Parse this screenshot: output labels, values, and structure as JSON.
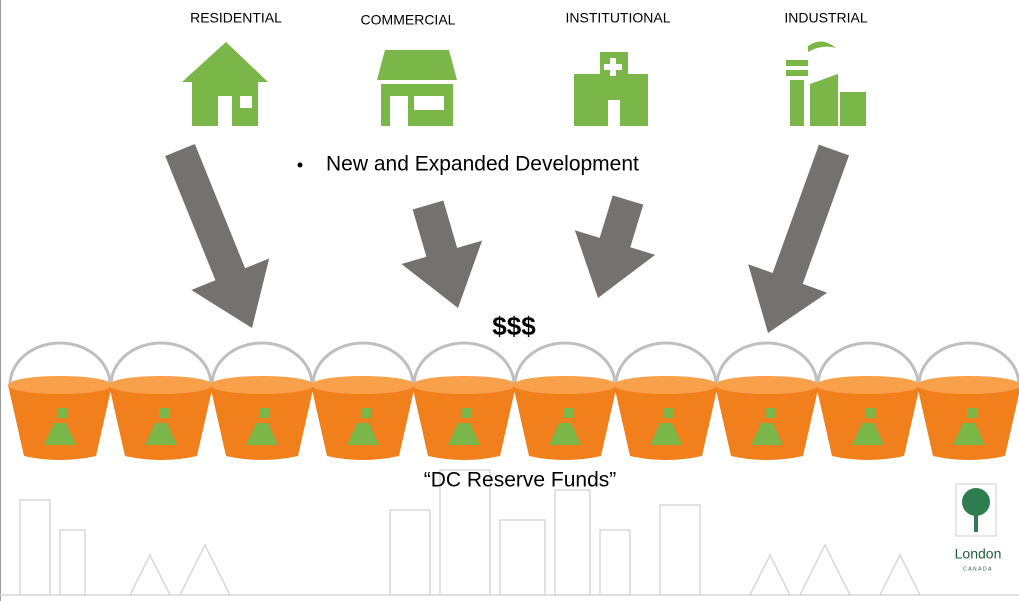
{
  "sectors": [
    {
      "label": "RESIDENTIAL"
    },
    {
      "label": "COMMERCIAL"
    },
    {
      "label": "INSTITUTIONAL"
    },
    {
      "label": "INDUSTRIAL"
    }
  ],
  "bullet": "New and Expanded Development",
  "money": "$$$",
  "funds_label": "“DC Reserve Funds”",
  "logo": {
    "name": "London",
    "country": "CANADA"
  }
}
